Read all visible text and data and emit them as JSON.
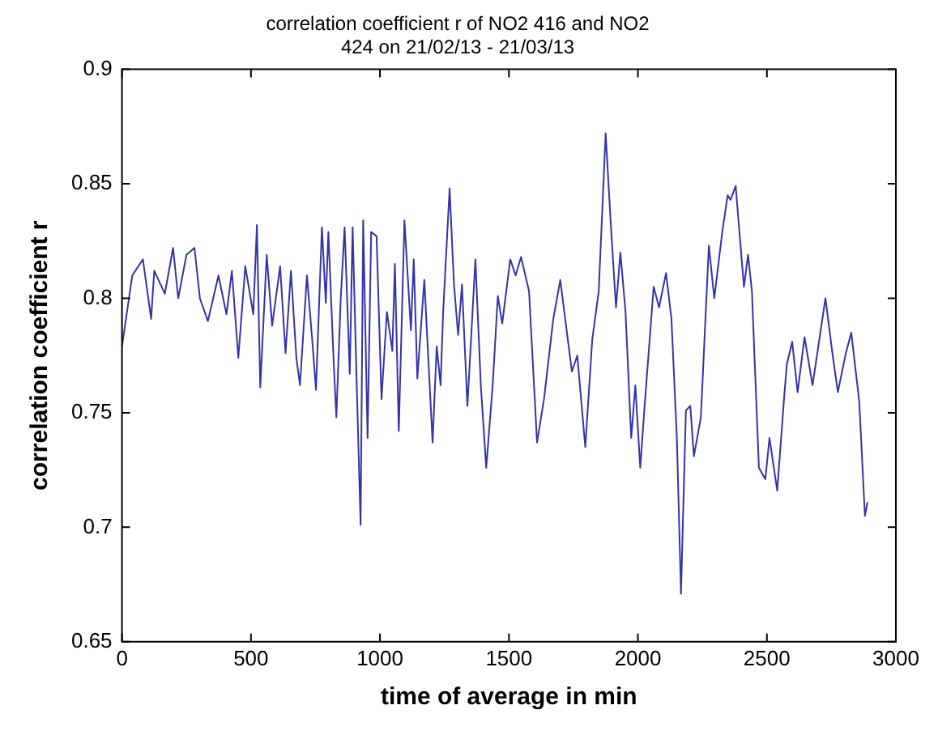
{
  "chart_data": {
    "type": "line",
    "title": "correlation coefficient r of NO2 416 and NO2\n424 on 21/02/13 - 21/03/13",
    "xlabel": "time of average in min",
    "ylabel": "correlation coefficient r",
    "xlim": [
      0,
      3000
    ],
    "xticks": [
      0,
      500,
      1000,
      1500,
      2000,
      2500,
      3000
    ],
    "ylim": [
      0.65,
      0.9
    ],
    "yticks": [
      0.65,
      0.7,
      0.75,
      0.8,
      0.85,
      0.9
    ],
    "grid": false,
    "legend": false,
    "marker": "none",
    "line_style": "solid",
    "x": [
      0,
      40,
      81,
      113,
      125,
      166,
      198,
      218,
      250,
      281,
      302,
      333,
      374,
      405,
      426,
      451,
      478,
      509,
      523,
      536,
      561,
      582,
      613,
      634,
      655,
      676,
      690,
      717,
      738,
      752,
      775,
      790,
      800,
      821,
      831,
      848,
      863,
      883,
      894,
      910,
      925,
      935,
      952,
      966,
      987,
      1006,
      1027,
      1048,
      1058,
      1073,
      1095,
      1120,
      1131,
      1145,
      1172,
      1204,
      1220,
      1235,
      1245,
      1270,
      1287,
      1303,
      1318,
      1339,
      1370,
      1391,
      1412,
      1437,
      1457,
      1474,
      1505,
      1526,
      1547,
      1578,
      1609,
      1636,
      1672,
      1699,
      1744,
      1765,
      1796,
      1823,
      1848,
      1875,
      1894,
      1915,
      1932,
      1952,
      1974,
      1990,
      2009,
      2026,
      2061,
      2082,
      2109,
      2130,
      2151,
      2167,
      2186,
      2203,
      2217,
      2244,
      2275,
      2296,
      2327,
      2348,
      2359,
      2379,
      2411,
      2427,
      2442,
      2469,
      2494,
      2510,
      2540,
      2567,
      2577,
      2598,
      2619,
      2646,
      2677,
      2702,
      2727,
      2754,
      2775,
      2806,
      2827,
      2858,
      2880,
      2890
    ],
    "series": [
      {
        "color": "#3333aa",
        "values": [
          0.779,
          0.81,
          0.817,
          0.791,
          0.812,
          0.802,
          0.822,
          0.8,
          0.819,
          0.822,
          0.8,
          0.79,
          0.81,
          0.793,
          0.812,
          0.774,
          0.814,
          0.793,
          0.832,
          0.761,
          0.819,
          0.788,
          0.814,
          0.776,
          0.812,
          0.774,
          0.762,
          0.81,
          0.781,
          0.76,
          0.831,
          0.798,
          0.829,
          0.771,
          0.748,
          0.8,
          0.831,
          0.767,
          0.831,
          0.762,
          0.701,
          0.834,
          0.739,
          0.829,
          0.827,
          0.756,
          0.794,
          0.777,
          0.815,
          0.742,
          0.834,
          0.786,
          0.817,
          0.765,
          0.808,
          0.737,
          0.779,
          0.762,
          0.794,
          0.848,
          0.806,
          0.784,
          0.806,
          0.753,
          0.817,
          0.762,
          0.726,
          0.762,
          0.801,
          0.789,
          0.817,
          0.81,
          0.818,
          0.803,
          0.737,
          0.756,
          0.791,
          0.808,
          0.768,
          0.775,
          0.735,
          0.782,
          0.803,
          0.872,
          0.834,
          0.796,
          0.82,
          0.794,
          0.739,
          0.762,
          0.726,
          0.753,
          0.805,
          0.796,
          0.811,
          0.791,
          0.739,
          0.671,
          0.751,
          0.753,
          0.731,
          0.748,
          0.823,
          0.8,
          0.829,
          0.845,
          0.843,
          0.849,
          0.805,
          0.819,
          0.803,
          0.726,
          0.721,
          0.739,
          0.716,
          0.757,
          0.771,
          0.781,
          0.759,
          0.783,
          0.762,
          0.781,
          0.8,
          0.776,
          0.759,
          0.776,
          0.785,
          0.755,
          0.705,
          0.711
        ]
      }
    ]
  }
}
